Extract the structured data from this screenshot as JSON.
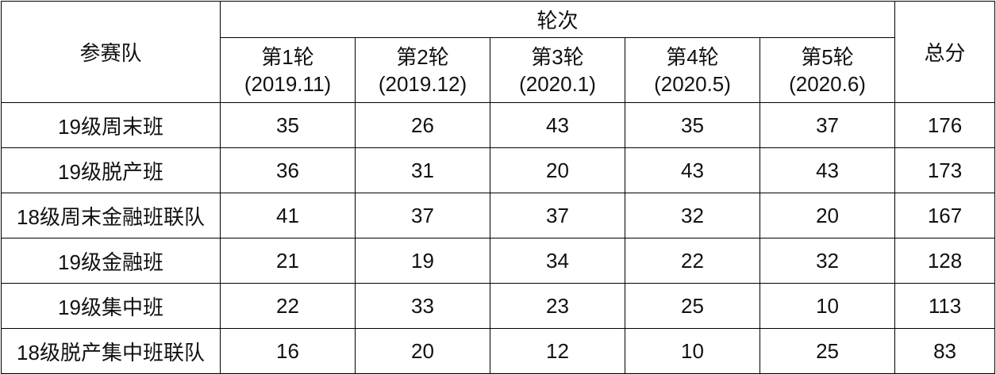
{
  "table": {
    "team_header": "参赛队",
    "rounds_header": "轮次",
    "total_header": "总分",
    "rounds": [
      {
        "label": "第1轮",
        "date": "(2019.11)"
      },
      {
        "label": "第2轮",
        "date": "(2019.12)"
      },
      {
        "label": "第3轮",
        "date": "(2020.1)"
      },
      {
        "label": "第4轮",
        "date": "(2020.5)"
      },
      {
        "label": "第5轮",
        "date": "(2020.6)"
      }
    ],
    "rows": [
      {
        "team": "19级周末班",
        "scores": [
          "35",
          "26",
          "43",
          "35",
          "37"
        ],
        "total": "176"
      },
      {
        "team": "19级脱产班",
        "scores": [
          "36",
          "31",
          "20",
          "43",
          "43"
        ],
        "total": "173"
      },
      {
        "team": "18级周末金融班联队",
        "scores": [
          "41",
          "37",
          "37",
          "32",
          "20"
        ],
        "total": "167"
      },
      {
        "team": "19级金融班",
        "scores": [
          "21",
          "19",
          "34",
          "22",
          "32"
        ],
        "total": "128"
      },
      {
        "team": "19级集中班",
        "scores": [
          "22",
          "33",
          "23",
          "25",
          "10"
        ],
        "total": "113"
      },
      {
        "team": "18级脱产集中班联队",
        "scores": [
          "16",
          "20",
          "12",
          "10",
          "25"
        ],
        "total": "83"
      }
    ]
  }
}
